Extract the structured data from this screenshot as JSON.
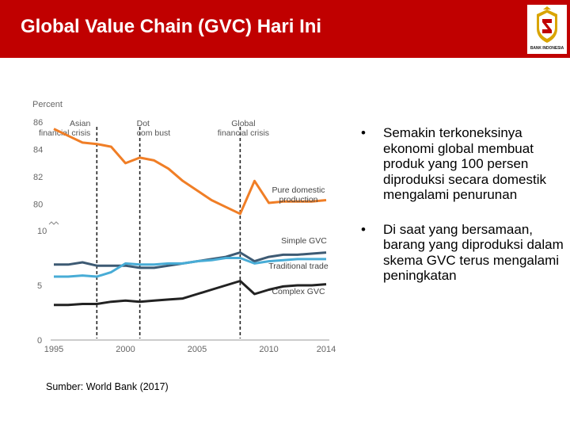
{
  "slide": {
    "title": "Global Value Chain (GVC) Hari Ini",
    "logo_text": "BANK INDONESIA",
    "bullets": [
      "Semakin terkoneksinya ekonomi global membuat produk yang 100 persen diproduksi secara domestik mengalami penurunan",
      "Di saat yang bersamaan, barang yang diproduksi dalam skema GVC terus mengalami peningkatan"
    ],
    "source": "Sumber: World Bank (2017)",
    "colors": {
      "header": "#c00000",
      "title_text": "#ffffff"
    }
  },
  "chart_data": {
    "type": "line",
    "ylabel": "Percent",
    "x_ticks": [
      1995,
      2000,
      2005,
      2010,
      2014
    ],
    "xlim": [
      1995,
      2014
    ],
    "upper_panel": {
      "ylim": [
        79,
        86
      ],
      "yticks": [
        80,
        82,
        84,
        86
      ]
    },
    "lower_panel": {
      "ylim": [
        0,
        10
      ],
      "yticks": [
        0,
        5,
        10
      ]
    },
    "events": [
      {
        "x": 1998,
        "label": "Asian financial crisis"
      },
      {
        "x": 2001,
        "label": "Dot com bust"
      },
      {
        "x": 2008,
        "label": "Global financial crisis"
      }
    ],
    "x": [
      1995,
      1996,
      1997,
      1998,
      1999,
      2000,
      2001,
      2002,
      2003,
      2004,
      2005,
      2006,
      2007,
      2008,
      2009,
      2010,
      2011,
      2012,
      2013,
      2014
    ],
    "series": [
      {
        "name": "Pure domestic production",
        "panel": "upper",
        "color": "#f07e26",
        "values": [
          85.5,
          85.0,
          84.5,
          84.4,
          84.2,
          83.0,
          83.4,
          83.2,
          82.6,
          81.7,
          81.0,
          80.3,
          79.8,
          79.3,
          81.7,
          80.1,
          80.2,
          80.2,
          80.2,
          80.3
        ]
      },
      {
        "name": "Simple GVC",
        "panel": "lower",
        "color": "#3d5a73",
        "values": [
          6.9,
          6.9,
          7.1,
          6.8,
          6.8,
          6.8,
          6.6,
          6.6,
          6.8,
          7.0,
          7.2,
          7.4,
          7.6,
          8.0,
          7.2,
          7.6,
          7.8,
          7.8,
          7.9,
          8.0
        ]
      },
      {
        "name": "Traditional trade",
        "panel": "lower",
        "color": "#48acd6",
        "values": [
          5.8,
          5.8,
          5.9,
          5.8,
          6.2,
          7.0,
          6.9,
          6.9,
          7.0,
          7.0,
          7.2,
          7.3,
          7.5,
          7.5,
          7.0,
          7.2,
          7.3,
          7.4,
          7.4,
          7.4
        ]
      },
      {
        "name": "Complex GVC",
        "panel": "lower",
        "color": "#222222",
        "values": [
          3.2,
          3.2,
          3.3,
          3.3,
          3.5,
          3.6,
          3.5,
          3.6,
          3.7,
          3.8,
          4.2,
          4.6,
          5.0,
          5.4,
          4.2,
          4.6,
          4.9,
          5.0,
          5.0,
          5.1
        ]
      }
    ]
  }
}
